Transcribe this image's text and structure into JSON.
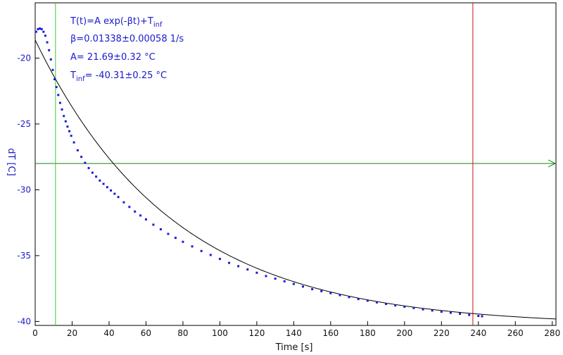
{
  "colors": {
    "data_points": "#1a1ad6",
    "fit_curve": "#000000",
    "cursor_vertical_1": "#33cc33",
    "cursor_vertical_2": "#cc1111",
    "cursor_horizontal": "#118811",
    "y_text": "#1a1acc",
    "x_text": "#111111"
  },
  "chart_data": {
    "type": "scatter",
    "title": "",
    "xlabel": "Time [s]",
    "ylabel": "dT [C]",
    "xlim": [
      0,
      282
    ],
    "ylim": [
      -40.3,
      -15.8
    ],
    "x_ticks": [
      0,
      20,
      40,
      60,
      80,
      100,
      120,
      140,
      160,
      180,
      200,
      220,
      240,
      260,
      280
    ],
    "y_ticks": [
      -20,
      -25,
      -30,
      -35,
      -40
    ],
    "x_tick_labels": [
      "0",
      "20",
      "40",
      "60",
      "80",
      "100",
      "120",
      "140",
      "160",
      "180",
      "200",
      "220",
      "240",
      "260",
      "280"
    ],
    "y_tick_labels": [
      "-20",
      "-25",
      "-30",
      "-35",
      "-40"
    ],
    "grid": false,
    "annotations": {
      "model": "T(t)=A exp(-βt)+T",
      "model_sub": "inf",
      "beta": "β=0.01338±0.00058 1/s",
      "amp": "A= 21.69±0.32 °C",
      "tinf_main": "T",
      "tinf_sub": "inf",
      "tinf_value": "= -40.31±0.25 °C"
    },
    "fit": {
      "A": 21.69,
      "beta": 0.01338,
      "T_inf": -40.31,
      "x_range": [
        0,
        282
      ]
    },
    "cursors": {
      "vertical": [
        11,
        237
      ],
      "horizontal": -28
    },
    "series": [
      {
        "values_x": [
          0.5,
          1.5,
          2.5,
          3.5,
          4.5,
          5.5,
          6.5,
          7.5,
          8.5,
          9.5,
          10.5,
          11.5,
          12.5,
          13.5,
          14.5,
          15.5,
          16.5,
          17.5,
          18.5,
          19.5,
          21,
          23,
          25,
          27,
          29,
          31,
          33,
          35,
          37,
          39,
          41,
          43,
          45,
          48,
          51,
          54,
          57,
          60,
          64,
          68,
          72,
          76,
          80,
          85,
          90,
          95,
          100,
          105,
          110,
          115,
          120,
          125,
          130,
          135,
          140,
          145,
          150,
          155,
          160,
          165,
          170,
          175,
          180,
          185,
          190,
          195,
          200,
          205,
          210,
          215,
          220,
          225,
          230,
          235,
          240,
          242
        ],
        "values_y": [
          -18.0,
          -17.8,
          -17.75,
          -17.8,
          -18.0,
          -18.3,
          -18.8,
          -19.4,
          -20.1,
          -20.9,
          -21.6,
          -22.2,
          -22.8,
          -23.4,
          -23.9,
          -24.4,
          -24.8,
          -25.2,
          -25.55,
          -25.9,
          -26.4,
          -27.0,
          -27.5,
          -27.95,
          -28.35,
          -28.7,
          -29.0,
          -29.3,
          -29.55,
          -29.8,
          -30.05,
          -30.3,
          -30.55,
          -30.95,
          -31.3,
          -31.65,
          -31.95,
          -32.25,
          -32.65,
          -33.0,
          -33.35,
          -33.65,
          -33.95,
          -34.3,
          -34.65,
          -34.95,
          -35.25,
          -35.55,
          -35.8,
          -36.05,
          -36.3,
          -36.55,
          -36.75,
          -36.95,
          -37.15,
          -37.35,
          -37.55,
          -37.7,
          -37.85,
          -38.0,
          -38.15,
          -38.3,
          -38.42,
          -38.55,
          -38.67,
          -38.78,
          -38.88,
          -38.98,
          -39.08,
          -39.17,
          -39.26,
          -39.34,
          -39.42,
          -39.5,
          -39.58,
          -39.6
        ]
      }
    ]
  }
}
